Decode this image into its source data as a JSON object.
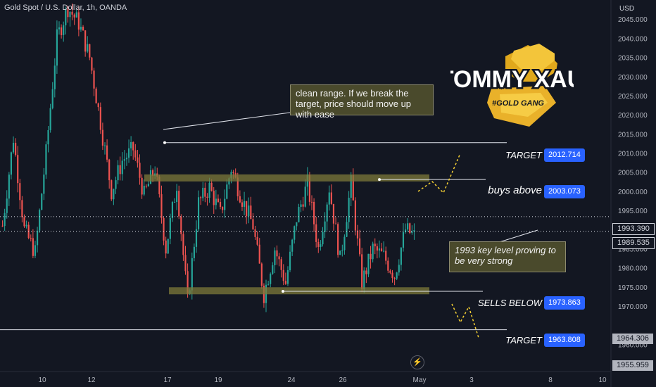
{
  "chart_data": {
    "type": "candlestick",
    "symbol_title": "Gold Spot / U.S. Dollar, 1h, OANDA",
    "currency": "USD",
    "y_ticks": [
      2045,
      2040,
      2035,
      2030,
      2025,
      2020,
      2015,
      2010,
      2005,
      2000,
      1995,
      1985,
      1980,
      1975,
      1970,
      1960
    ],
    "x_ticks": [
      "10",
      "12",
      "17",
      "19",
      "24",
      "26",
      "May",
      "3",
      "8",
      "10"
    ],
    "ylim": [
      1954,
      2050
    ],
    "colors": {
      "up": "#26a69a",
      "down": "#ef5350",
      "background": "#131722",
      "zone": "#7d7a3a",
      "badge": "#2962ff",
      "projection": "#f5d033"
    },
    "price_path": [
      1991,
      2014,
      1990,
      1984,
      2010,
      2040,
      2048,
      2044,
      2035,
      2018,
      2000,
      2008,
      2011,
      1999,
      2006,
      1985,
      2002,
      1971,
      1997,
      2001,
      1994,
      2006,
      1998,
      1991,
      1973,
      1985,
      1976,
      1993,
      2002,
      1985,
      2001,
      1982,
      2002,
      1976,
      1985,
      1983,
      1978,
      1990,
      1988
    ]
  },
  "zones": [
    {
      "name": "resistance-zone",
      "price": 2003.5
    },
    {
      "name": "support-zone",
      "price": 1974
    }
  ],
  "levels": [
    {
      "label": "TARGET",
      "value": "2012.714"
    },
    {
      "label": "buys above",
      "value": "2003.073"
    },
    {
      "label": "SELLS BELOW",
      "value": "1973.863"
    },
    {
      "label": "TARGET",
      "value": "1963.808"
    }
  ],
  "axis_badges": [
    {
      "value": "1993.390",
      "style": "current"
    },
    {
      "value": "1989.535",
      "style": "last"
    },
    {
      "value": "1964.306",
      "style": "grey"
    },
    {
      "value": "1955.959",
      "style": "grey"
    }
  ],
  "annotations": {
    "top": "clean range. If we break the target, price should move up with ease",
    "key_level": "1993 key level proving to be very strong"
  },
  "logo": {
    "name": "TOMMY XAU",
    "tagline": "#GOLD GANG"
  },
  "icons": {
    "flash": "lightning-icon"
  }
}
